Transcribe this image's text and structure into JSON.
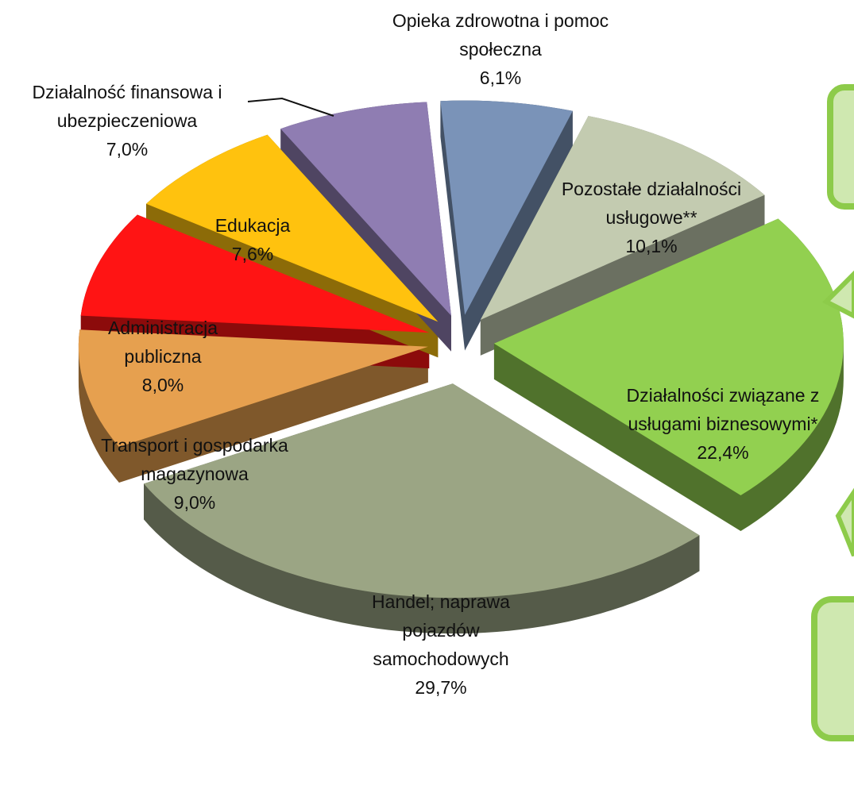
{
  "chart_data": {
    "type": "pie",
    "categories": [
      "Opieka zdrowotna i pomoc społeczna",
      "Pozostałe działalności usługowe**",
      "Działalności związane z usługami biznesowymi*",
      "Handel; naprawa pojazdów samochodowych",
      "Transport i gospodarka magazynowa",
      "Administracja publiczna",
      "Edukacja",
      "Działalność finansowa i ubezpieczeniowa"
    ],
    "values": [
      6.1,
      10.1,
      22.4,
      29.7,
      9.0,
      8.0,
      7.6,
      7.0
    ],
    "value_labels": [
      "6,1%",
      "10,1%",
      "22,4%",
      "29,7%",
      "9,0%",
      "8,0%",
      "7,6%",
      "7,0%"
    ],
    "colors": [
      "#7a93b8",
      "#c3cbb0",
      "#92d050",
      "#9ba584",
      "#e6a04f",
      "#ff1414",
      "#ffc20e",
      "#8f7db2"
    ]
  }
}
